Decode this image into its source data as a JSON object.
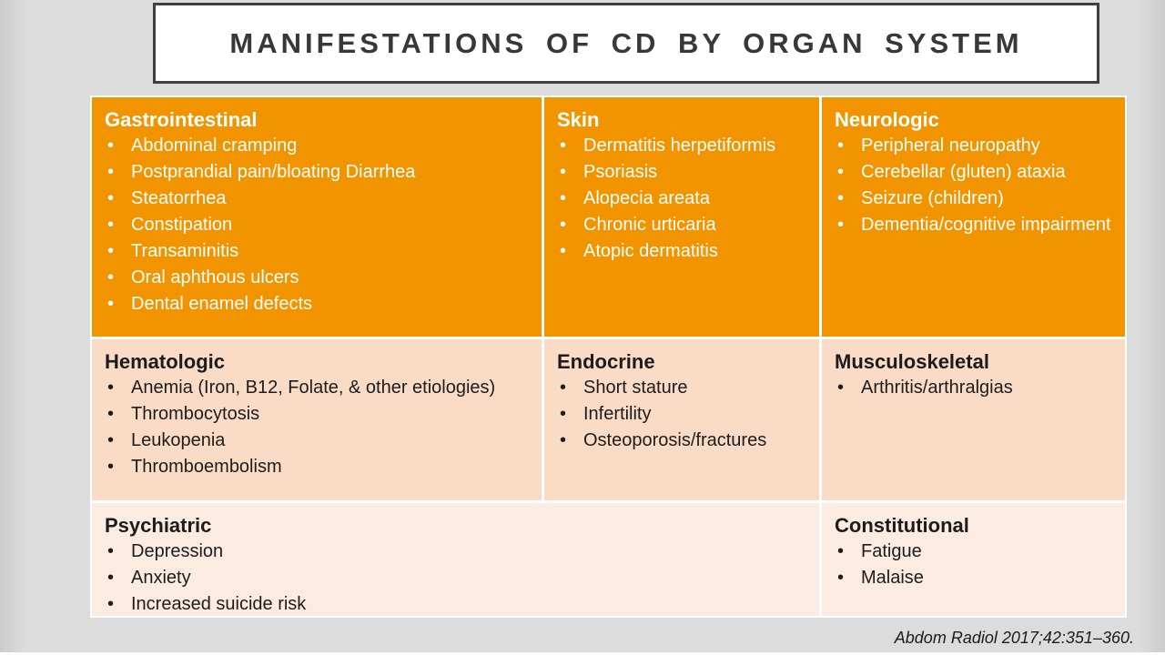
{
  "title": "MANIFESTATIONS OF CD BY ORGAN SYSTEM",
  "citation": "Abdom Radiol 2017;42:351–360.",
  "colors": {
    "orange": "#F29400",
    "peach": "#FADCC6",
    "light-peach": "#FCEBE1",
    "slide-bg": "#DCDCDC",
    "title-text": "#383838",
    "title-border": "#3F3F3F",
    "dark-text": "#1C1C1C",
    "light-text": "#FFFFFF",
    "divider": "#FFFFFF"
  },
  "table": {
    "rows": [
      {
        "cells": [
          {
            "header": "Gastrointestinal",
            "items": [
              "Abdominal cramping",
              "Postprandial pain/bloating Diarrhea",
              "Steatorrhea",
              "Constipation",
              "Transaminitis",
              "Oral aphthous ulcers",
              "Dental enamel defects"
            ]
          },
          {
            "header": "Skin",
            "items": [
              "Dermatitis herpetiformis",
              "Psoriasis",
              "Alopecia areata",
              "Chronic urticaria",
              "Atopic dermatitis"
            ]
          },
          {
            "header": "Neurologic",
            "items": [
              "Peripheral neuropathy",
              "Cerebellar (gluten) ataxia",
              "Seizure (children)",
              "Dementia/cognitive impairment"
            ]
          }
        ]
      },
      {
        "cells": [
          {
            "header": "Hematologic",
            "items": [
              "Anemia (Iron, B12, Folate, & other etiologies)",
              "Thrombocytosis",
              "Leukopenia",
              "Thromboembolism"
            ]
          },
          {
            "header": "Endocrine",
            "items": [
              "Short stature",
              "Infertility",
              "Osteoporosis/fractures"
            ]
          },
          {
            "header": "Musculoskeletal",
            "items": [
              "Arthritis/arthralgias"
            ]
          }
        ]
      },
      {
        "cells": [
          {
            "header": "Psychiatric",
            "items": [
              "Depression",
              "Anxiety",
              "Increased suicide risk"
            ]
          },
          {
            "header": "Constitutional",
            "items": [
              "Fatigue",
              "Malaise"
            ]
          }
        ]
      }
    ]
  }
}
